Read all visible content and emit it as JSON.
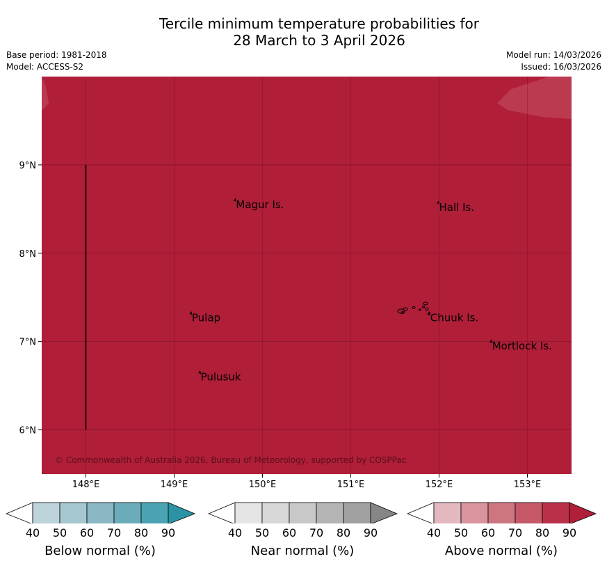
{
  "title": {
    "line1": "Tercile minimum temperature probabilities for",
    "line2": "28 March to 3 April 2026"
  },
  "meta": {
    "base_period": "Base period: 1981-2018",
    "model": "Model: ACCESS-S2",
    "model_run": "Model run: 14/03/2026",
    "issued": "Issued: 16/03/2026"
  },
  "map": {
    "background_color": "#b01e38",
    "faint_region_color": "#bc3a50",
    "lon_labels": [
      "148°E",
      "149°E",
      "150°E",
      "151°E",
      "152°E",
      "153°E"
    ],
    "lon_values": [
      148,
      149,
      150,
      151,
      152,
      153
    ],
    "lat_labels": [
      "9°N",
      "8°N",
      "7°N",
      "6°N"
    ],
    "lat_values": [
      9,
      8,
      7,
      6
    ],
    "lon_range": [
      147.5,
      153.5
    ],
    "lat_range": [
      5.5,
      10.0
    ],
    "places": [
      {
        "name": "Magur Is.",
        "lon": 149.7,
        "lat": 8.55
      },
      {
        "name": "Hall Is.",
        "lon": 152.0,
        "lat": 8.52
      },
      {
        "name": "Pulap",
        "lon": 149.2,
        "lat": 7.27
      },
      {
        "name": "Chuuk Is.",
        "lon": 151.9,
        "lat": 7.27
      },
      {
        "name": "Mortlock Is.",
        "lon": 152.6,
        "lat": 6.95
      },
      {
        "name": "Pulusuk",
        "lon": 149.3,
        "lat": 6.6
      }
    ],
    "copyright": "© Commonwealth of Australia 2026, Bureau of Meteorology, supported by COSPPac"
  },
  "legends": [
    {
      "title": "Below normal (%)",
      "colors": [
        "#bcd3db",
        "#a5c7cf",
        "#89b7c4",
        "#6bacba",
        "#49a3b3",
        "#2a93a4"
      ],
      "ticks": [
        "40",
        "50",
        "60",
        "70",
        "80",
        "90"
      ]
    },
    {
      "title": "Near normal (%)",
      "colors": [
        "#e5e5e5",
        "#d7d7d7",
        "#c8c8c8",
        "#b4b4b4",
        "#a0a0a0",
        "#868686"
      ],
      "ticks": [
        "40",
        "50",
        "60",
        "70",
        "80",
        "90"
      ]
    },
    {
      "title": "Above normal (%)",
      "colors": [
        "#e3b8be",
        "#d9949e",
        "#cd7580",
        "#c65867",
        "#ba3048",
        "#b01e38"
      ],
      "ticks": [
        "40",
        "50",
        "60",
        "70",
        "80",
        "90"
      ]
    }
  ]
}
